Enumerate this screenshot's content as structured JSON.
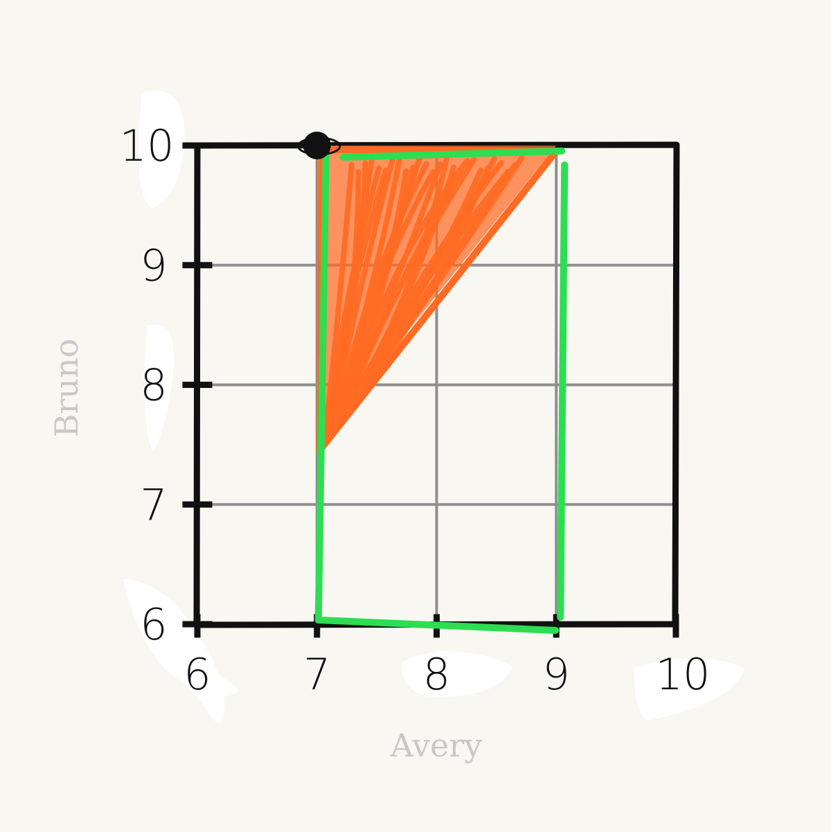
{
  "chart_data": {
    "type": "scatter",
    "title": "",
    "xlabel": "Avery",
    "ylabel": "Bruno",
    "xlim": [
      6,
      10
    ],
    "ylim": [
      6,
      10
    ],
    "x_ticks": [
      "6",
      "7",
      "8",
      "9",
      "10"
    ],
    "y_ticks": [
      "6",
      "7",
      "8",
      "9",
      "10"
    ],
    "grid": true,
    "points": [
      {
        "x": 7,
        "y": 10
      }
    ],
    "regions": [
      {
        "shape": "rectangle",
        "x_range": [
          7,
          9
        ],
        "y_range": [
          6,
          10
        ]
      },
      {
        "shape": "triangle",
        "vertices": [
          [
            7,
            10
          ],
          [
            9,
            10
          ],
          [
            7,
            7.5
          ]
        ]
      }
    ],
    "colors": {
      "background": "#f8f7f2",
      "frame": "#111111",
      "grid": "#8f8f8f",
      "point": "#111111",
      "rectangle": "#2ddd52",
      "triangle": "#ff6b24",
      "axis_title": "#c8c8c8"
    }
  }
}
